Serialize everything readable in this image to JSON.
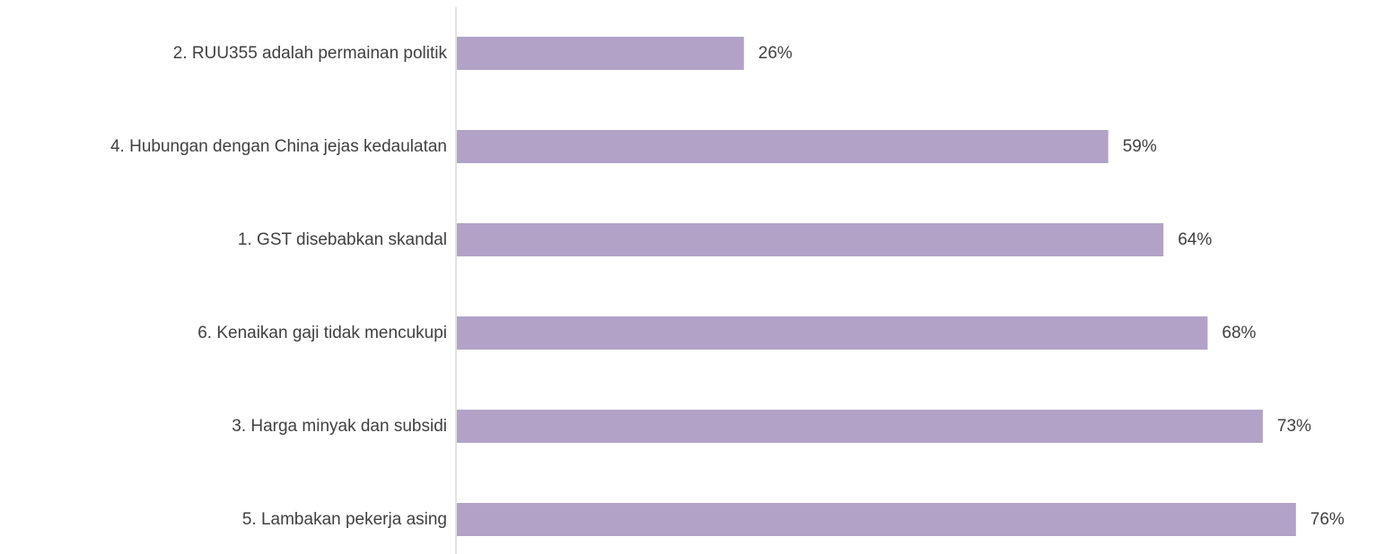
{
  "chart_data": {
    "type": "bar",
    "orientation": "horizontal",
    "title": "",
    "xlabel": "",
    "ylabel": "",
    "categories": [
      "2. RUU355 adalah permainan politik",
      "4. Hubungan dengan China jejas kedaulatan",
      "1. GST disebabkan skandal",
      "6. Kenaikan gaji tidak mencukupi",
      "3. Harga minyak dan subsidi",
      "5. Lambakan pekerja asing"
    ],
    "values": [
      26,
      59,
      64,
      68,
      73,
      76
    ],
    "value_labels": [
      "26%",
      "59%",
      "64%",
      "68%",
      "73%",
      "76%"
    ],
    "unit": "%",
    "xlim": [
      0,
      80
    ],
    "grid": false,
    "legend": "none",
    "bar_color": "#b3a2c8",
    "axis_color": "#d9d9d9",
    "text_color": "#404040"
  }
}
